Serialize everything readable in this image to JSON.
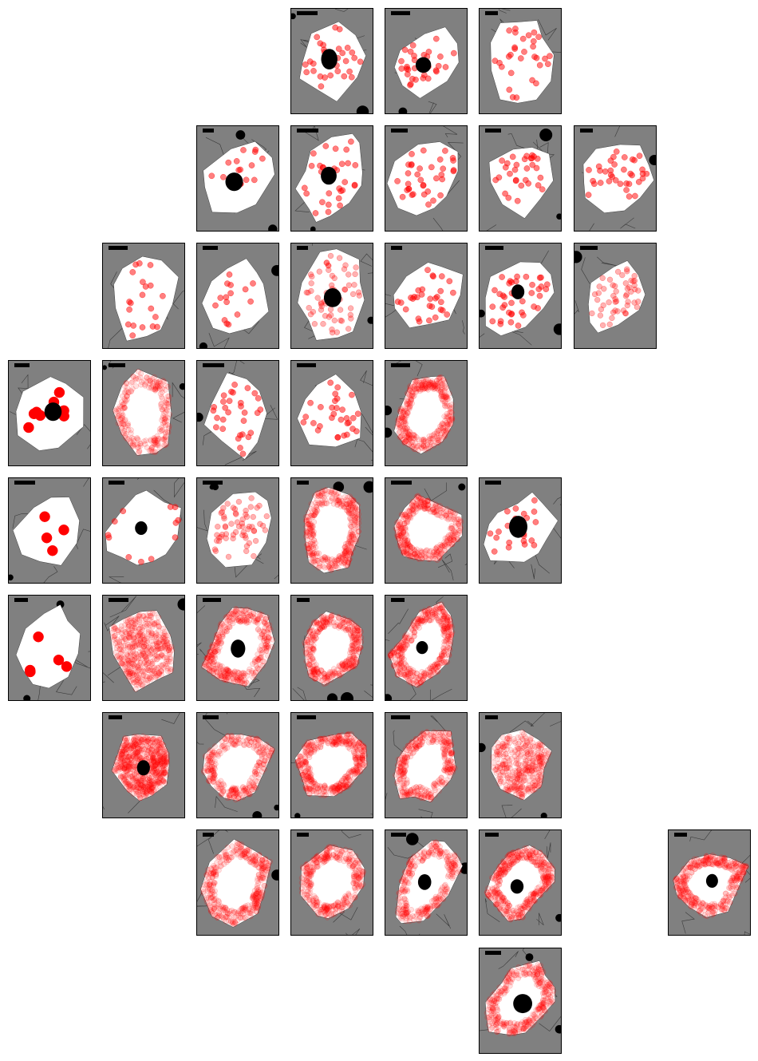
{
  "colors": {
    "panel_background": "#808080",
    "cell_fill": "#ffffff",
    "spot": "#ff0000",
    "nucleus": "#000000",
    "scale_bar": "#000000",
    "neighbor_edge": "#3a3a3a"
  },
  "grid": {
    "rows": 9,
    "columns": 8,
    "panels": [
      {
        "row": 0,
        "col": 3,
        "spots": 30,
        "spot_pattern": "scattered",
        "nucleus": true
      },
      {
        "row": 0,
        "col": 4,
        "spots": 30,
        "spot_pattern": "scattered",
        "nucleus": true
      },
      {
        "row": 0,
        "col": 5,
        "spots": 30,
        "spot_pattern": "scattered",
        "nucleus": false
      },
      {
        "row": 1,
        "col": 2,
        "spots": 15,
        "spot_pattern": "scattered",
        "nucleus": true
      },
      {
        "row": 1,
        "col": 3,
        "spots": 30,
        "spot_pattern": "scattered",
        "nucleus": true
      },
      {
        "row": 1,
        "col": 4,
        "spots": 35,
        "spot_pattern": "scattered",
        "nucleus": false
      },
      {
        "row": 1,
        "col": 5,
        "spots": 30,
        "spot_pattern": "scattered",
        "nucleus": false
      },
      {
        "row": 1,
        "col": 6,
        "spots": 35,
        "spot_pattern": "scattered",
        "nucleus": false
      },
      {
        "row": 2,
        "col": 1,
        "spots": 20,
        "spot_pattern": "scattered",
        "nucleus": false
      },
      {
        "row": 2,
        "col": 2,
        "spots": 15,
        "spot_pattern": "scattered",
        "nucleus": false
      },
      {
        "row": 2,
        "col": 3,
        "spots": 60,
        "spot_pattern": "scattered",
        "nucleus": true
      },
      {
        "row": 2,
        "col": 4,
        "spots": 30,
        "spot_pattern": "scattered",
        "nucleus": false
      },
      {
        "row": 2,
        "col": 5,
        "spots": 40,
        "spot_pattern": "scattered",
        "nucleus": true
      },
      {
        "row": 2,
        "col": 6,
        "spots": 50,
        "spot_pattern": "scattered",
        "nucleus": false
      },
      {
        "row": 3,
        "col": 0,
        "spots": 8,
        "spot_pattern": "scattered",
        "nucleus": true
      },
      {
        "row": 3,
        "col": 1,
        "spots": 250,
        "spot_pattern": "peripheral",
        "nucleus": false
      },
      {
        "row": 3,
        "col": 2,
        "spots": 30,
        "spot_pattern": "scattered",
        "nucleus": false
      },
      {
        "row": 3,
        "col": 3,
        "spots": 30,
        "spot_pattern": "scattered",
        "nucleus": false
      },
      {
        "row": 3,
        "col": 4,
        "spots": 400,
        "spot_pattern": "peripheral",
        "nucleus": false
      },
      {
        "row": 4,
        "col": 0,
        "spots": 4,
        "spot_pattern": "scattered",
        "nucleus": false
      },
      {
        "row": 4,
        "col": 1,
        "spots": 12,
        "spot_pattern": "edge",
        "nucleus": true
      },
      {
        "row": 4,
        "col": 2,
        "spots": 60,
        "spot_pattern": "scattered",
        "nucleus": false
      },
      {
        "row": 4,
        "col": 3,
        "spots": 400,
        "spot_pattern": "peripheral",
        "nucleus": false
      },
      {
        "row": 4,
        "col": 4,
        "spots": 400,
        "spot_pattern": "peripheral",
        "nucleus": false
      },
      {
        "row": 4,
        "col": 5,
        "spots": 25,
        "spot_pattern": "scattered",
        "nucleus": true
      },
      {
        "row": 5,
        "col": 0,
        "spots": 5,
        "spot_pattern": "scattered",
        "nucleus": false
      },
      {
        "row": 5,
        "col": 1,
        "spots": 500,
        "spot_pattern": "dense",
        "nucleus": false
      },
      {
        "row": 5,
        "col": 2,
        "spots": 400,
        "spot_pattern": "peripheral",
        "nucleus": true
      },
      {
        "row": 5,
        "col": 3,
        "spots": 400,
        "spot_pattern": "peripheral",
        "nucleus": false
      },
      {
        "row": 5,
        "col": 4,
        "spots": 450,
        "spot_pattern": "peripheral",
        "nucleus": true
      },
      {
        "row": 6,
        "col": 1,
        "spots": 700,
        "spot_pattern": "dense",
        "nucleus": true
      },
      {
        "row": 6,
        "col": 2,
        "spots": 300,
        "spot_pattern": "peripheral",
        "nucleus": false
      },
      {
        "row": 6,
        "col": 3,
        "spots": 450,
        "spot_pattern": "peripheral",
        "nucleus": false
      },
      {
        "row": 6,
        "col": 4,
        "spots": 350,
        "spot_pattern": "peripheral",
        "nucleus": false
      },
      {
        "row": 6,
        "col": 5,
        "spots": 400,
        "spot_pattern": "dense",
        "nucleus": false
      },
      {
        "row": 7,
        "col": 2,
        "spots": 400,
        "spot_pattern": "peripheral",
        "nucleus": false
      },
      {
        "row": 7,
        "col": 3,
        "spots": 350,
        "spot_pattern": "peripheral",
        "nucleus": false
      },
      {
        "row": 7,
        "col": 4,
        "spots": 300,
        "spot_pattern": "peripheral",
        "nucleus": true
      },
      {
        "row": 7,
        "col": 5,
        "spots": 450,
        "spot_pattern": "peripheral",
        "nucleus": true
      },
      {
        "row": 7,
        "col": 7,
        "spots": 400,
        "spot_pattern": "peripheral",
        "nucleus": true
      },
      {
        "row": 8,
        "col": 5,
        "spots": 350,
        "spot_pattern": "peripheral",
        "nucleus": true
      }
    ]
  }
}
